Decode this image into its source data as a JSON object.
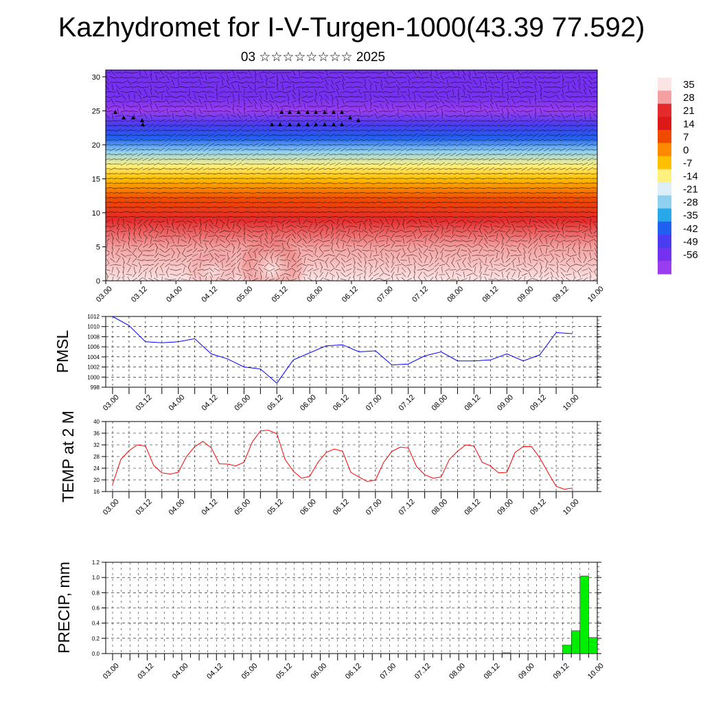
{
  "header": {
    "title": "Kazhydromet for I-V-Turgen-1000(43.39 77.592)",
    "subtitle": "03 ☆☆☆☆☆☆☆☆ 2025"
  },
  "time_ticks": [
    "03.00",
    "03.12",
    "04.00",
    "04.12",
    "05.00",
    "05.12",
    "06.00",
    "06.12",
    "07.00",
    "07.12",
    "08.00",
    "08.12",
    "09.00",
    "09.12",
    "10.00"
  ],
  "colors": {
    "pmsl_line": "#0000ff",
    "temp_line": "#ff0000",
    "precip_bar": "#00ee00",
    "vector": "#000000"
  },
  "chart_data": [
    {
      "type": "heatmap",
      "title": "",
      "xlabel": "",
      "ylabel": "",
      "x_ticks": [
        "03.00",
        "03.12",
        "04.00",
        "04.12",
        "05.00",
        "05.12",
        "06.00",
        "06.12",
        "07.00",
        "07.12",
        "08.00",
        "08.12",
        "09.00",
        "09.12",
        "10.00"
      ],
      "ylim": [
        0,
        31
      ],
      "y_ticks": [
        0,
        5,
        10,
        15,
        20,
        25,
        30
      ],
      "overlay": "wind vectors",
      "colorbar": {
        "labels": [
          "35",
          "28",
          "21",
          "14",
          "7",
          "0",
          "-7",
          "-14",
          "-21",
          "-28",
          "-35",
          "-42",
          "-49",
          "-56"
        ],
        "colors": [
          "#fde4e4",
          "#f4a0a0",
          "#e42a2a",
          "#dd1818",
          "#f04a00",
          "#ff8a00",
          "#ffc000",
          "#fff080",
          "#dceff8",
          "#8fd0f0",
          "#28a8e8",
          "#2060f0",
          "#4a3cf0",
          "#7530f0",
          "#9a3cf0"
        ]
      },
      "bands": [
        {
          "h": 0,
          "v": 38
        },
        {
          "h": 5,
          "v": 30
        },
        {
          "h": 9,
          "v": 22
        },
        {
          "h": 12,
          "v": 10
        },
        {
          "h": 15,
          "v": 0
        },
        {
          "h": 17,
          "v": -12
        },
        {
          "h": 19,
          "v": -26
        },
        {
          "h": 21,
          "v": -38
        },
        {
          "h": 23,
          "v": -48
        },
        {
          "h": 25,
          "v": -56
        },
        {
          "h": 27,
          "v": -52
        },
        {
          "h": 31,
          "v": -54
        }
      ]
    },
    {
      "type": "line",
      "title": "",
      "xlabel": "",
      "ylabel": "PMSL",
      "x": [
        "03.00",
        "03.06",
        "03.12",
        "03.18",
        "04.00",
        "04.06",
        "04.12",
        "04.18",
        "05.00",
        "05.06",
        "05.12",
        "05.18",
        "06.00",
        "06.06",
        "06.12",
        "06.18",
        "07.00",
        "07.06",
        "07.12",
        "07.18",
        "08.00",
        "08.06",
        "08.12",
        "08.18",
        "09.00",
        "09.06",
        "09.12",
        "09.18",
        "10.00"
      ],
      "values": [
        1012,
        1010.2,
        1007,
        1006.8,
        1007,
        1007.6,
        1004.6,
        1003.6,
        1002,
        1001.6,
        998.8,
        1003.4,
        1004.8,
        1006.2,
        1006.4,
        1005,
        1005.2,
        1002.4,
        1002.6,
        1004.2,
        1005,
        1003.2,
        1003.2,
        1003.4,
        1004.6,
        1003.2,
        1004.4,
        1008.8,
        1008.6
      ],
      "ylim": [
        998,
        1012
      ],
      "y_ticks": [
        998,
        1000,
        1002,
        1004,
        1006,
        1008,
        1010,
        1012
      ]
    },
    {
      "type": "line",
      "title": "",
      "xlabel": "",
      "ylabel": "TEMP at 2 M",
      "x": [
        "03.00",
        "03.03",
        "03.06",
        "03.09",
        "03.12",
        "03.15",
        "03.18",
        "03.21",
        "04.00",
        "04.03",
        "04.06",
        "04.09",
        "04.12",
        "04.15",
        "04.18",
        "04.21",
        "05.00",
        "05.03",
        "05.06",
        "05.09",
        "05.12",
        "05.15",
        "05.18",
        "05.21",
        "06.00",
        "06.03",
        "06.06",
        "06.09",
        "06.12",
        "06.15",
        "06.18",
        "06.21",
        "07.00",
        "07.03",
        "07.06",
        "07.09",
        "07.12",
        "07.15",
        "07.18",
        "07.21",
        "08.00",
        "08.03",
        "08.06",
        "08.09",
        "08.12",
        "08.15",
        "08.18",
        "08.21",
        "09.00",
        "09.03",
        "09.06",
        "09.09",
        "09.12",
        "09.15",
        "09.18",
        "09.21",
        "10.00"
      ],
      "values": [
        18.5,
        27,
        30,
        32,
        31.6,
        25,
        22.4,
        22,
        22.6,
        28,
        31.4,
        33.2,
        31,
        25.5,
        25.4,
        24.8,
        26,
        33,
        36.8,
        37,
        35.8,
        27,
        23,
        20.6,
        21.2,
        26,
        29.4,
        30.6,
        29.8,
        22.6,
        21,
        19.4,
        20,
        26,
        29.8,
        31.2,
        31,
        24.6,
        21.8,
        20.6,
        21,
        27,
        29.8,
        32,
        31.6,
        26,
        24.8,
        22.4,
        22.6,
        29.4,
        31.4,
        31.4,
        27.6,
        22.6,
        17.8,
        16.8,
        17.2
      ],
      "ylim": [
        16,
        40
      ],
      "y_ticks": [
        16,
        20,
        24,
        28,
        32,
        36,
        40
      ]
    },
    {
      "type": "bar",
      "title": "",
      "xlabel": "",
      "ylabel": "PRECIP, mm",
      "categories": [
        "08.15",
        "09.12",
        "09.15",
        "09.18",
        "09.21"
      ],
      "values": [
        0.01,
        0.11,
        0.3,
        1.02,
        0.21
      ],
      "ylim": [
        0,
        1.2
      ],
      "y_ticks": [
        "0.0",
        "0.2",
        "0.4",
        "0.6",
        "0.8",
        "1.0",
        "1.2"
      ]
    }
  ]
}
